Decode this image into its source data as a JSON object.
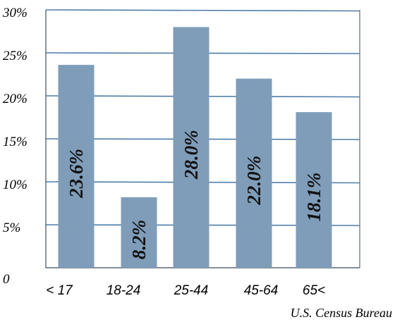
{
  "chart_data": {
    "type": "bar",
    "categories": [
      "< 17",
      "18-24",
      "25-44",
      "45-64",
      "65<"
    ],
    "values": [
      23.6,
      8.2,
      28.0,
      22.0,
      18.1
    ],
    "value_labels": [
      "23.6%",
      "8.2%",
      "28.0%",
      "22.0%",
      "18.1%"
    ],
    "y_ticks": [
      "0",
      "5%",
      "10%",
      "15%",
      "20%",
      "25%",
      "30%"
    ],
    "ylim": [
      0,
      30
    ],
    "grid": "horizontal",
    "source": "U.S. Census Bureau",
    "colors": {
      "bar": "#7f9db9",
      "grid": "#4f7ea8",
      "axis": "#5a6a7a"
    }
  }
}
